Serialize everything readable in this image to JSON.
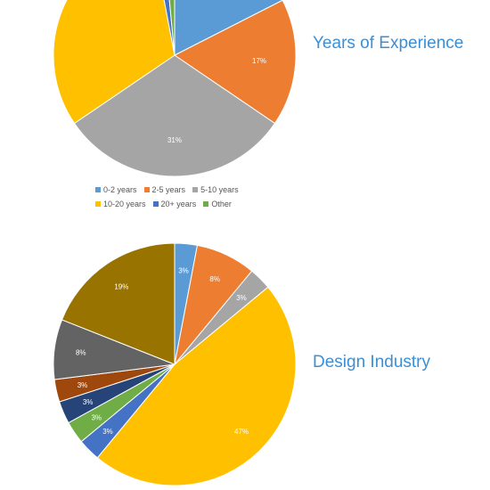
{
  "chart_data": [
    {
      "type": "pie",
      "title": "Years of Experience",
      "start_angle_deg": 0,
      "slices": [
        {
          "label": "0-2 years",
          "value": 17.5,
          "color": "#5b9bd5",
          "data_label": ""
        },
        {
          "label": "2-5 years",
          "value": 17,
          "color": "#ed7d31",
          "data_label": "17%"
        },
        {
          "label": "5-10 years",
          "value": 31,
          "color": "#a5a5a5",
          "data_label": "31%"
        },
        {
          "label": "10-20 years",
          "value": 31.5,
          "color": "#ffc000",
          "data_label": ""
        },
        {
          "label": "20+ years",
          "value": 1.5,
          "color": "#4472c4",
          "data_label": ""
        },
        {
          "label": "Other",
          "value": 1.5,
          "color": "#70ad47",
          "data_label": ""
        }
      ],
      "legend": {
        "position": "bottom",
        "rows": [
          [
            "0-2 years",
            "2-5 years",
            "5-10 years"
          ],
          [
            "10-20 years",
            "20+ years",
            "Other"
          ]
        ]
      }
    },
    {
      "type": "pie",
      "title": "Design Industry",
      "start_angle_deg": 0,
      "slices": [
        {
          "label": "",
          "value": 3,
          "color": "#5b9bd5",
          "data_label": "3%"
        },
        {
          "label": "",
          "value": 8,
          "color": "#ed7d31",
          "data_label": "8%"
        },
        {
          "label": "",
          "value": 3,
          "color": "#a5a5a5",
          "data_label": "3%"
        },
        {
          "label": "",
          "value": 47,
          "color": "#ffc000",
          "data_label": "47%"
        },
        {
          "label": "",
          "value": 3,
          "color": "#4472c4",
          "data_label": "3%"
        },
        {
          "label": "",
          "value": 3,
          "color": "#70ad47",
          "data_label": "3%"
        },
        {
          "label": "",
          "value": 3,
          "color": "#264478",
          "data_label": "3%"
        },
        {
          "label": "",
          "value": 3,
          "color": "#9e480e",
          "data_label": "3%"
        },
        {
          "label": "",
          "value": 8,
          "color": "#636363",
          "data_label": "8%"
        },
        {
          "label": "",
          "value": 19,
          "color": "#997300",
          "data_label": "19%"
        }
      ]
    }
  ]
}
